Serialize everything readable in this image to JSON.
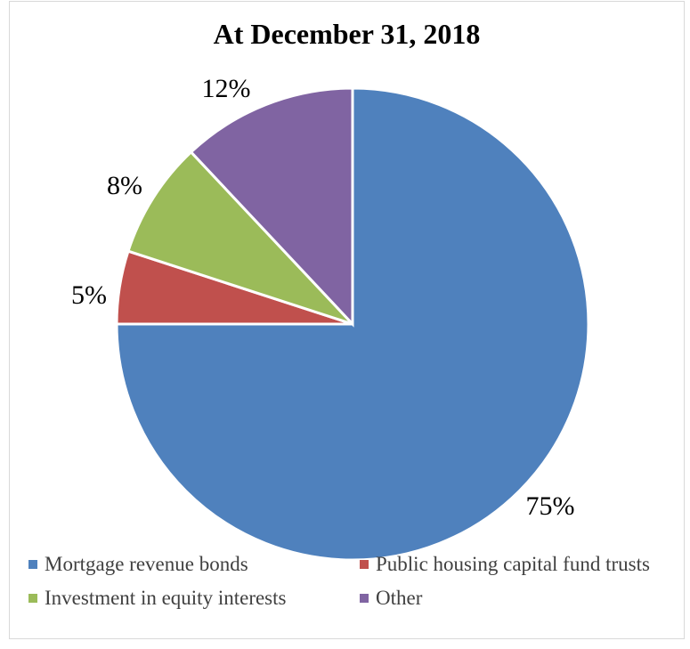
{
  "chart_data": {
    "type": "pie",
    "title": "At December 31, 2018",
    "categories": [
      "Mortgage revenue bonds",
      "Public housing capital fund trusts",
      "Investment in equity interests",
      "Other"
    ],
    "values": [
      75,
      5,
      8,
      12
    ],
    "labels": [
      "75%",
      "5%",
      "8%",
      "12%"
    ],
    "colors": [
      "#4f81bd",
      "#c0504d",
      "#9bbb59",
      "#8064a2"
    ],
    "legend_position": "bottom"
  }
}
